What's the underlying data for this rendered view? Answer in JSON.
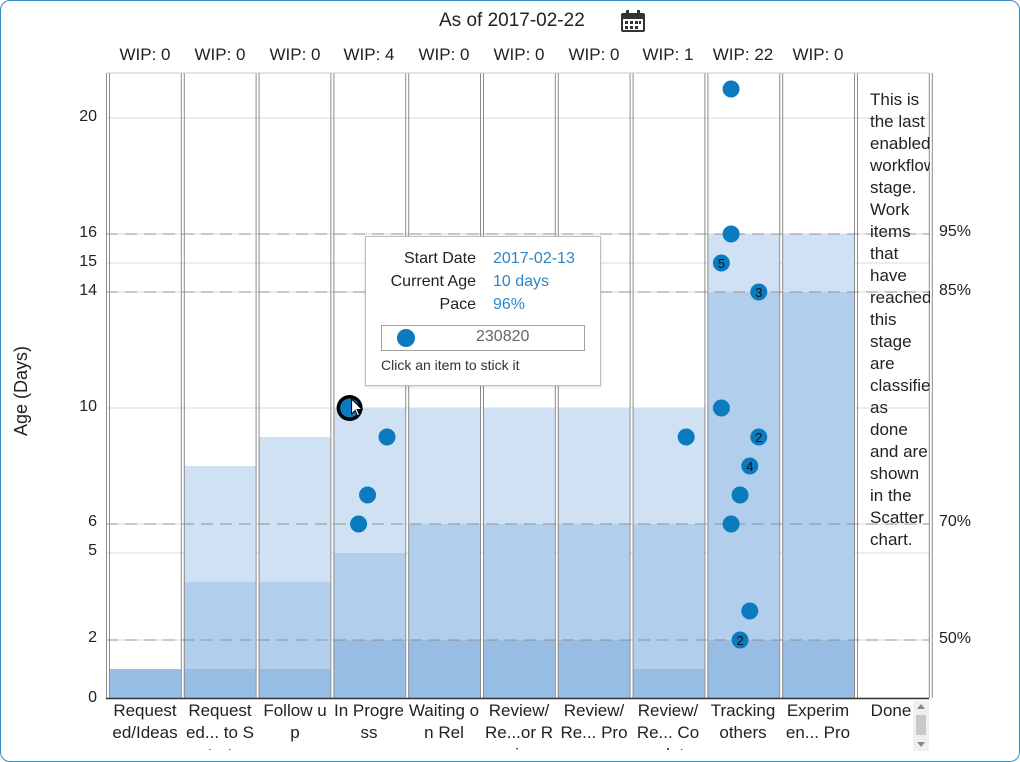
{
  "header": {
    "title": "As of 2017-02-22",
    "calendar_icon": "calendar-icon"
  },
  "chart_data": {
    "type": "scatter",
    "title": "As of 2017-02-22",
    "ylabel": "Age (Days)",
    "ylim": [
      0,
      22
    ],
    "ytick_values": [
      0,
      2,
      5,
      6,
      10,
      14,
      15,
      16,
      20
    ],
    "categories": [
      "Request ed/Ideas",
      "Request ed... to S tart",
      "Follow u p",
      "In Progre ss",
      "Waiting on Rel",
      "Review/ Re...or R eview",
      "Review/ Re... Pro gress",
      "Review/ Re... Co mplete",
      "Tracking others",
      "Experim en... Pro gress",
      "Done"
    ],
    "wip": [
      "WIP: 0",
      "WIP: 0",
      "WIP: 0",
      "WIP: 4",
      "WIP: 0",
      "WIP: 0",
      "WIP: 0",
      "WIP: 1",
      "WIP: 22",
      "WIP: 0"
    ],
    "percentiles": [
      {
        "label": "50%",
        "value": 2
      },
      {
        "label": "70%",
        "value": 6
      },
      {
        "label": "85%",
        "value": 14
      },
      {
        "label": "95%",
        "value": 16
      }
    ],
    "pace_bands": [
      {
        "column": 0,
        "bands": [
          1,
          1,
          1,
          1
        ]
      },
      {
        "column": 1,
        "bands": [
          1,
          4,
          4,
          8
        ]
      },
      {
        "column": 2,
        "bands": [
          1,
          4,
          4,
          9
        ]
      },
      {
        "column": 3,
        "bands": [
          2,
          5,
          5,
          10
        ]
      },
      {
        "column": 4,
        "bands": [
          2,
          6,
          6,
          10
        ]
      },
      {
        "column": 5,
        "bands": [
          2,
          6,
          6,
          10
        ]
      },
      {
        "column": 6,
        "bands": [
          2,
          6,
          6,
          10
        ]
      },
      {
        "column": 7,
        "bands": [
          1,
          6,
          6,
          10
        ]
      },
      {
        "column": 8,
        "bands": [
          2,
          6,
          14,
          16
        ]
      },
      {
        "column": 9,
        "bands": [
          2,
          6,
          14,
          16
        ]
      }
    ],
    "points": [
      {
        "column": 3,
        "offset": 0.23,
        "age": 10,
        "count": 1,
        "highlighted": true
      },
      {
        "column": 3,
        "offset": 0.73,
        "age": 9,
        "count": 1
      },
      {
        "column": 3,
        "offset": 0.47,
        "age": 7,
        "count": 1
      },
      {
        "column": 3,
        "offset": 0.35,
        "age": 6,
        "count": 1
      },
      {
        "column": 7,
        "offset": 0.73,
        "age": 9,
        "count": 1
      },
      {
        "column": 8,
        "offset": 0.33,
        "age": 21,
        "count": 1
      },
      {
        "column": 8,
        "offset": 0.33,
        "age": 16,
        "count": 1
      },
      {
        "column": 8,
        "offset": 0.2,
        "age": 15,
        "count": 5
      },
      {
        "column": 8,
        "offset": 0.7,
        "age": 14,
        "count": 3
      },
      {
        "column": 8,
        "offset": 0.2,
        "age": 10,
        "count": 1
      },
      {
        "column": 8,
        "offset": 0.7,
        "age": 9,
        "count": 2
      },
      {
        "column": 8,
        "offset": 0.58,
        "age": 8,
        "count": 4
      },
      {
        "column": 8,
        "offset": 0.45,
        "age": 7,
        "count": 1
      },
      {
        "column": 8,
        "offset": 0.33,
        "age": 6,
        "count": 1
      },
      {
        "column": 8,
        "offset": 0.58,
        "age": 3,
        "count": 1
      },
      {
        "column": 8,
        "offset": 0.45,
        "age": 2,
        "count": 2
      }
    ],
    "colors": {
      "band_light": "#cfe1f3",
      "band_mid": "#b1cfec",
      "band_dark": "#97bde5",
      "point": "#0a7bbf",
      "gridline": "#d9d9d9",
      "percentile_line": "#909090"
    }
  },
  "done_note": "This is the last enabled workflow stage. Work items that have reached this stage are classified as done and are shown in the Scatter chart.",
  "tooltip": {
    "start_date_label": "Start Date",
    "start_date_value": "2017-02-13",
    "age_label": "Current Age",
    "age_value": "10 days",
    "pace_label": "Pace",
    "pace_value": "96%",
    "item_id": "230820",
    "hint": "Click an item to stick it"
  }
}
